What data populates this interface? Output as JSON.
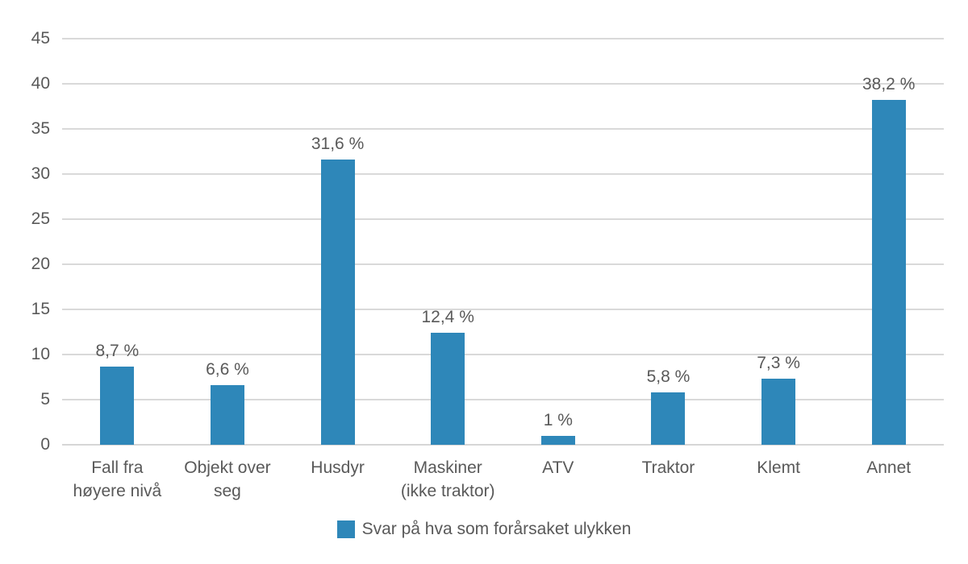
{
  "chart_data": {
    "type": "bar",
    "title": "",
    "categories": [
      "Fall fra\nhøyere nivå",
      "Objekt over\nseg",
      "Husdyr",
      "Maskiner\n(ikke traktor)",
      "ATV",
      "Traktor",
      "Klemt",
      "Annet"
    ],
    "values": [
      8.7,
      6.6,
      31.6,
      12.4,
      1,
      5.8,
      7.3,
      38.2
    ],
    "value_labels": [
      "8,7 %",
      "6,6 %",
      "31,6 %",
      "12,4 %",
      "1 %",
      "5,8 %",
      "7,3 %",
      "38,2 %"
    ],
    "yticks": [
      0,
      5,
      10,
      15,
      20,
      25,
      30,
      35,
      40,
      45
    ],
    "ylim": [
      0,
      45
    ],
    "xlabel": "",
    "ylabel": "",
    "grid": "horizontal",
    "legend_position": "bottom",
    "legend": "Svar på hva som forårsaket ulykken",
    "colors": {
      "bar": "#2e87b9",
      "gridline": "#d9d9d9",
      "text": "#595959",
      "background": "#ffffff"
    }
  }
}
